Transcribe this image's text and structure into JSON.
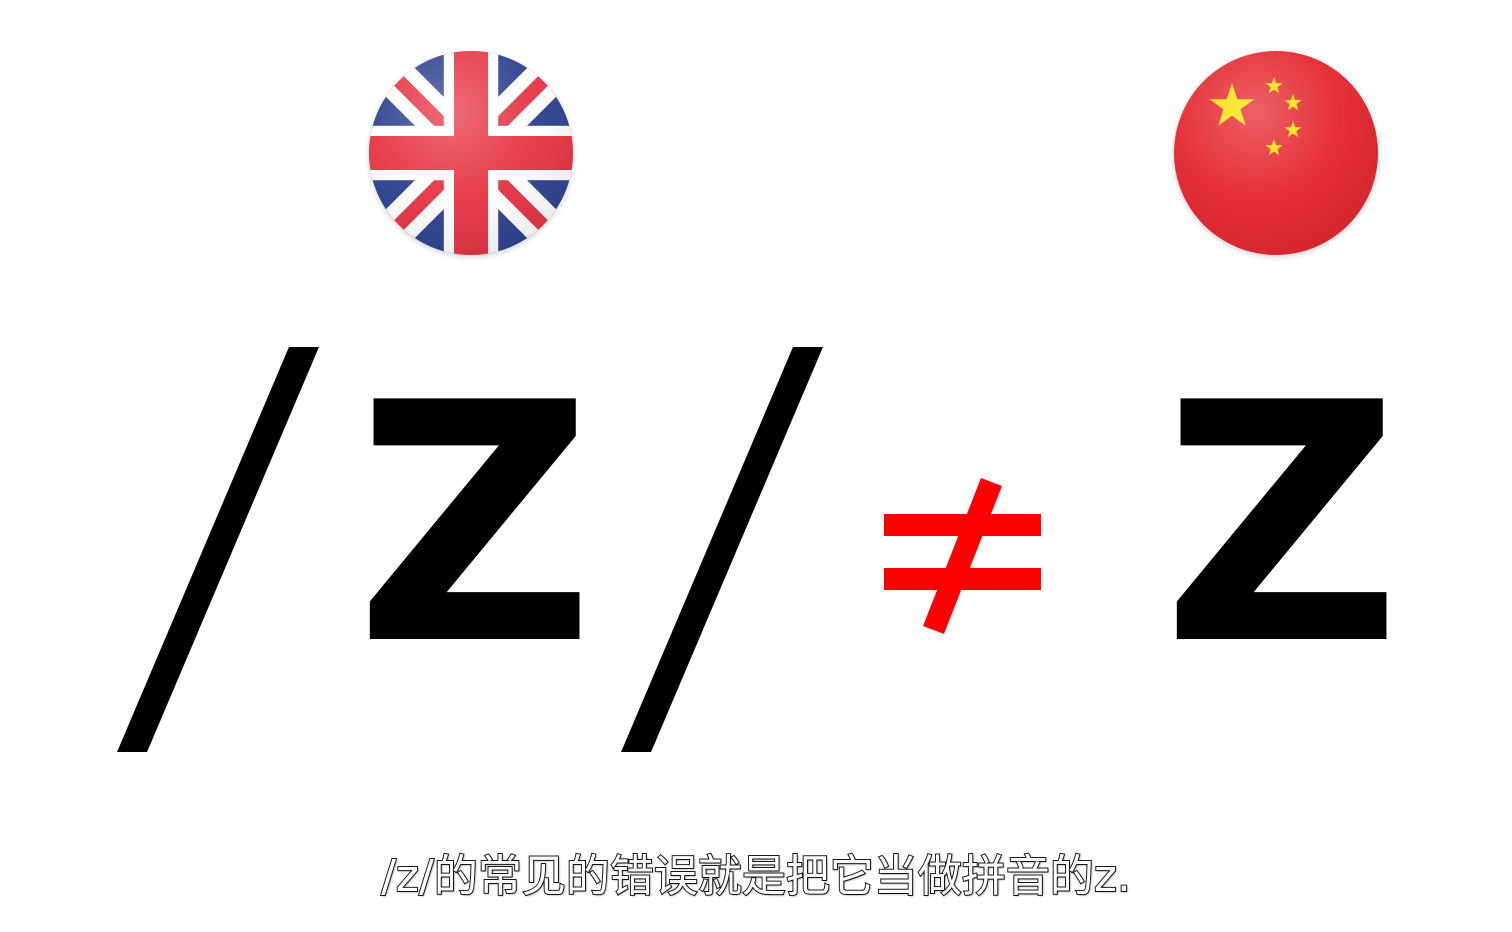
{
  "flags": {
    "left": {
      "icon": "uk-flag-icon",
      "colors": {
        "blue": "#012169",
        "red": "#e63241",
        "white": "#ffffff"
      }
    },
    "right": {
      "icon": "china-flag-icon",
      "colors": {
        "red": "#e5232b",
        "yellow": "#ffde00"
      }
    }
  },
  "comparison": {
    "ipa_letter": "Z",
    "operator_icon": "not-equal-icon",
    "operator_color": "#ff0000",
    "pinyin_letter": "Z"
  },
  "subtitle": "/z/的常见的错误就是把它当做拼音的z."
}
